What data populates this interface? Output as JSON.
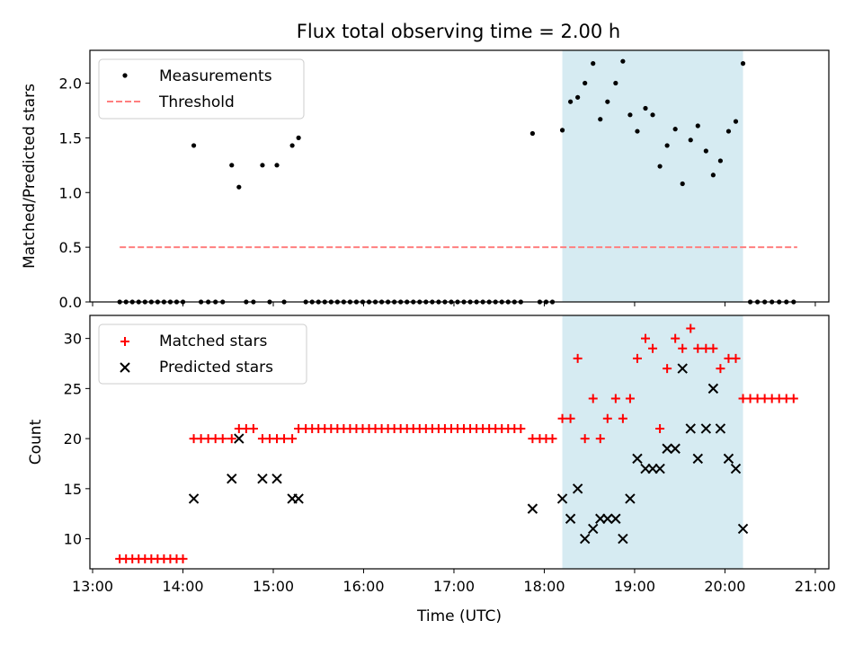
{
  "chart_data": [
    {
      "type": "scatter",
      "title": "Flux total observing time = 2.00 h",
      "xlabel": "",
      "ylabel": "Matched/Predicted stars",
      "xlim": [
        12.97,
        21.15
      ],
      "ylim": [
        0,
        2.3
      ],
      "yticks": [
        0.0,
        0.5,
        1.0,
        1.5,
        2.0
      ],
      "ytick_labels": [
        "0.0",
        "0.5",
        "1.0",
        "1.5",
        "2.0"
      ],
      "xticks": [
        13,
        14,
        15,
        16,
        17,
        18,
        19,
        20,
        21
      ],
      "xtick_labels": [],
      "shaded_region": [
        18.2,
        20.2
      ],
      "legend": {
        "location": "upper-left",
        "entries": [
          {
            "label": "Measurements",
            "marker": "dot",
            "color": "#000000"
          },
          {
            "label": "Threshold",
            "marker": "dashed-line",
            "color": "#ff7f7f"
          }
        ]
      },
      "threshold": {
        "value": 0.5,
        "x_range": [
          13.3,
          20.8
        ],
        "color": "#ff7f7f"
      },
      "series": [
        {
          "name": "Measurements",
          "x": [
            13.3,
            13.37,
            13.44,
            13.51,
            13.58,
            13.65,
            13.72,
            13.79,
            13.86,
            13.93,
            14.0,
            14.12,
            14.2,
            14.28,
            14.36,
            14.44,
            14.54,
            14.62,
            14.7,
            14.78,
            14.88,
            14.96,
            15.04,
            15.12,
            15.21,
            15.28,
            15.36,
            15.43,
            15.5,
            15.57,
            15.64,
            15.71,
            15.78,
            15.85,
            15.92,
            15.99,
            16.06,
            16.13,
            16.2,
            16.27,
            16.34,
            16.41,
            16.48,
            16.55,
            16.62,
            16.69,
            16.76,
            16.83,
            16.9,
            16.97,
            17.04,
            17.11,
            17.18,
            17.25,
            17.32,
            17.39,
            17.46,
            17.53,
            17.6,
            17.67,
            17.74,
            17.87,
            17.95,
            18.02,
            18.09,
            18.2,
            18.29,
            18.37,
            18.45,
            18.54,
            18.62,
            18.7,
            18.79,
            18.87,
            18.95,
            19.03,
            19.12,
            19.2,
            19.28,
            19.36,
            19.45,
            19.53,
            19.62,
            19.7,
            19.79,
            19.87,
            19.95,
            20.04,
            20.12,
            20.2,
            20.28,
            20.36,
            20.44,
            20.52,
            20.6,
            20.68,
            20.76
          ],
          "y": [
            0,
            0,
            0,
            0,
            0,
            0,
            0,
            0,
            0,
            0,
            0,
            1.43,
            0,
            0,
            0,
            0,
            1.25,
            1.05,
            0,
            0,
            1.25,
            0,
            1.25,
            0,
            1.43,
            1.5,
            0,
            0,
            0,
            0,
            0,
            0,
            0,
            0,
            0,
            0,
            0,
            0,
            0,
            0,
            0,
            0,
            0,
            0,
            0,
            0,
            0,
            0,
            0,
            0,
            0,
            0,
            0,
            0,
            0,
            0,
            0,
            0,
            0,
            0,
            0,
            1.54,
            0,
            0,
            0,
            1.57,
            1.83,
            1.87,
            2.0,
            2.18,
            1.67,
            1.83,
            2.0,
            2.2,
            1.71,
            1.56,
            1.77,
            1.71,
            1.24,
            1.43,
            1.58,
            1.08,
            1.48,
            1.61,
            1.38,
            1.16,
            1.29,
            1.56,
            1.65,
            2.18,
            0,
            0,
            0,
            0,
            0,
            0,
            0
          ]
        }
      ]
    },
    {
      "type": "scatter",
      "title": "",
      "xlabel": "Time (UTC)",
      "ylabel": "Count",
      "xlim": [
        12.97,
        21.15
      ],
      "ylim": [
        7,
        32.3
      ],
      "yticks": [
        10,
        15,
        20,
        25,
        30
      ],
      "ytick_labels": [
        "10",
        "15",
        "20",
        "25",
        "30"
      ],
      "xticks": [
        13,
        14,
        15,
        16,
        17,
        18,
        19,
        20,
        21
      ],
      "xtick_labels": [
        "13:00",
        "14:00",
        "15:00",
        "16:00",
        "17:00",
        "18:00",
        "19:00",
        "20:00",
        "21:00"
      ],
      "shaded_region": [
        18.2,
        20.2
      ],
      "legend": {
        "location": "upper-left",
        "entries": [
          {
            "label": "Matched stars",
            "marker": "plus",
            "color": "#ff0000"
          },
          {
            "label": "Predicted stars",
            "marker": "x",
            "color": "#000000"
          }
        ]
      },
      "series": [
        {
          "name": "Matched stars",
          "marker": "plus",
          "color": "#ff0000",
          "x": [
            13.3,
            13.37,
            13.44,
            13.51,
            13.58,
            13.65,
            13.72,
            13.79,
            13.86,
            13.93,
            14.0,
            14.12,
            14.2,
            14.28,
            14.36,
            14.44,
            14.54,
            14.62,
            14.7,
            14.78,
            14.88,
            14.96,
            15.04,
            15.12,
            15.21,
            15.28,
            15.36,
            15.43,
            15.5,
            15.57,
            15.64,
            15.71,
            15.78,
            15.85,
            15.92,
            15.99,
            16.06,
            16.13,
            16.2,
            16.27,
            16.34,
            16.41,
            16.48,
            16.55,
            16.62,
            16.69,
            16.76,
            16.83,
            16.9,
            16.97,
            17.04,
            17.11,
            17.18,
            17.25,
            17.32,
            17.39,
            17.46,
            17.53,
            17.6,
            17.67,
            17.74,
            17.87,
            17.95,
            18.02,
            18.09,
            18.2,
            18.29,
            18.37,
            18.45,
            18.54,
            18.62,
            18.7,
            18.79,
            18.87,
            18.95,
            19.03,
            19.12,
            19.2,
            19.28,
            19.36,
            19.45,
            19.53,
            19.62,
            19.7,
            19.79,
            19.87,
            19.95,
            20.04,
            20.12,
            20.2,
            20.28,
            20.36,
            20.44,
            20.52,
            20.6,
            20.68,
            20.76
          ],
          "y": [
            8,
            8,
            8,
            8,
            8,
            8,
            8,
            8,
            8,
            8,
            8,
            20,
            20,
            20,
            20,
            20,
            20,
            21,
            21,
            21,
            20,
            20,
            20,
            20,
            20,
            21,
            21,
            21,
            21,
            21,
            21,
            21,
            21,
            21,
            21,
            21,
            21,
            21,
            21,
            21,
            21,
            21,
            21,
            21,
            21,
            21,
            21,
            21,
            21,
            21,
            21,
            21,
            21,
            21,
            21,
            21,
            21,
            21,
            21,
            21,
            21,
            20,
            20,
            20,
            20,
            22,
            22,
            28,
            20,
            24,
            20,
            22,
            24,
            22,
            24,
            28,
            30,
            29,
            21,
            27,
            30,
            29,
            31,
            29,
            29,
            29,
            27,
            28,
            28,
            24,
            24,
            24,
            24,
            24,
            24,
            24,
            24
          ]
        },
        {
          "name": "Predicted stars",
          "marker": "x",
          "color": "#000000",
          "x": [
            14.12,
            14.54,
            14.62,
            14.88,
            15.04,
            15.21,
            15.28,
            17.87,
            18.2,
            18.29,
            18.37,
            18.45,
            18.54,
            18.62,
            18.7,
            18.79,
            18.87,
            18.95,
            19.03,
            19.12,
            19.2,
            19.28,
            19.36,
            19.45,
            19.53,
            19.62,
            19.7,
            19.79,
            19.87,
            19.95,
            20.04,
            20.12,
            20.2
          ],
          "y": [
            14,
            16,
            20,
            16,
            16,
            14,
            14,
            13,
            14,
            12,
            15,
            10,
            11,
            12,
            12,
            12,
            10,
            14,
            18,
            17,
            17,
            17,
            19,
            19,
            27,
            21,
            18,
            21,
            25,
            21,
            18,
            17,
            11
          ]
        }
      ]
    }
  ],
  "colors": {
    "shade": "#add8e6",
    "measurement": "#000000",
    "threshold": "#ff7f7f",
    "matched": "#ff0000",
    "predicted": "#000000"
  }
}
